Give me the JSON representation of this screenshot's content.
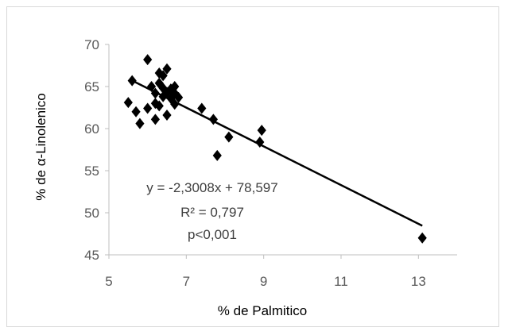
{
  "chart_data": {
    "type": "scatter",
    "title": "",
    "xlabel": "% de Palmitico",
    "ylabel": "% de α-Linolenico",
    "xlim": [
      5,
      14
    ],
    "ylim": [
      45,
      70
    ],
    "xticks": [
      5,
      7,
      9,
      11,
      13
    ],
    "yticks": [
      45,
      50,
      55,
      60,
      65,
      70
    ],
    "xtick_labels": [
      "5",
      "7",
      "9",
      "11",
      "13"
    ],
    "ytick_labels": [
      "45",
      "50",
      "55",
      "60",
      "65",
      "70"
    ],
    "grid": false,
    "legend": "none",
    "marker": "diamond",
    "marker_color": "#000000",
    "points": [
      {
        "x": 5.5,
        "y": 63.1
      },
      {
        "x": 5.6,
        "y": 65.7
      },
      {
        "x": 5.7,
        "y": 62.0
      },
      {
        "x": 5.8,
        "y": 60.6
      },
      {
        "x": 6.0,
        "y": 68.2
      },
      {
        "x": 6.0,
        "y": 62.4
      },
      {
        "x": 6.1,
        "y": 65.0
      },
      {
        "x": 6.2,
        "y": 64.2
      },
      {
        "x": 6.2,
        "y": 63.0
      },
      {
        "x": 6.2,
        "y": 61.1
      },
      {
        "x": 6.3,
        "y": 66.6
      },
      {
        "x": 6.3,
        "y": 65.4
      },
      {
        "x": 6.3,
        "y": 62.7
      },
      {
        "x": 6.4,
        "y": 66.3
      },
      {
        "x": 6.4,
        "y": 64.8
      },
      {
        "x": 6.4,
        "y": 63.8
      },
      {
        "x": 6.5,
        "y": 67.1
      },
      {
        "x": 6.5,
        "y": 64.3
      },
      {
        "x": 6.5,
        "y": 61.6
      },
      {
        "x": 6.6,
        "y": 64.7
      },
      {
        "x": 6.6,
        "y": 63.6
      },
      {
        "x": 6.7,
        "y": 65.0
      },
      {
        "x": 6.7,
        "y": 64.2
      },
      {
        "x": 6.7,
        "y": 62.9
      },
      {
        "x": 6.8,
        "y": 63.7
      },
      {
        "x": 7.4,
        "y": 62.4
      },
      {
        "x": 7.7,
        "y": 61.1
      },
      {
        "x": 7.8,
        "y": 56.8
      },
      {
        "x": 8.1,
        "y": 59.0
      },
      {
        "x": 8.9,
        "y": 58.4
      },
      {
        "x": 8.95,
        "y": 59.8
      },
      {
        "x": 13.1,
        "y": 47.0
      }
    ],
    "trendline": {
      "slope": -2.3008,
      "intercept": 78.597,
      "x_range": [
        5.6,
        13.1
      ]
    },
    "annotations": [
      "y = -2,3008x + 78,597",
      "R² = 0,797",
      "p<0,001"
    ]
  }
}
